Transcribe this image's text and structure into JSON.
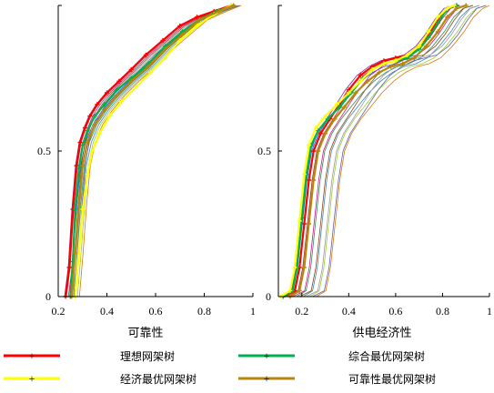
{
  "chart_data": [
    {
      "type": "line",
      "xlabel": "可靠性",
      "ylabel": "",
      "xlim": [
        0.2,
        1.0
      ],
      "ylim": [
        0,
        1.0
      ],
      "x_ticks": [
        "0.2",
        "0.4",
        "0.6",
        "0.8",
        "1"
      ],
      "y_ticks": [
        "0",
        "0.5"
      ],
      "grid": false,
      "series": [
        {
          "name": "理想网架树",
          "color": "#ff0000",
          "x": [
            0.23,
            0.245,
            0.26,
            0.275,
            0.29,
            0.31,
            0.33,
            0.36,
            0.4,
            0.45,
            0.5,
            0.56,
            0.63,
            0.7,
            0.77,
            0.84,
            0.91
          ],
          "y": [
            0.0,
            0.1,
            0.3,
            0.45,
            0.53,
            0.58,
            0.62,
            0.66,
            0.7,
            0.74,
            0.78,
            0.83,
            0.88,
            0.93,
            0.96,
            0.98,
            1.0
          ]
        },
        {
          "name": "综合最优网架树",
          "color": "#00b050",
          "x": [
            0.25,
            0.26,
            0.27,
            0.285,
            0.3,
            0.32,
            0.35,
            0.39,
            0.44,
            0.5,
            0.57,
            0.64,
            0.71,
            0.78,
            0.85,
            0.92
          ],
          "y": [
            0.0,
            0.12,
            0.3,
            0.44,
            0.52,
            0.57,
            0.62,
            0.66,
            0.71,
            0.75,
            0.8,
            0.86,
            0.91,
            0.95,
            0.98,
            1.0
          ]
        },
        {
          "name": "经济最优网架树",
          "color": "#ffff00",
          "x": [
            0.27,
            0.285,
            0.3,
            0.32,
            0.34,
            0.37,
            0.41,
            0.46,
            0.52,
            0.58,
            0.64,
            0.7,
            0.77,
            0.84,
            0.91
          ],
          "y": [
            0.0,
            0.15,
            0.3,
            0.42,
            0.5,
            0.56,
            0.62,
            0.67,
            0.72,
            0.77,
            0.82,
            0.88,
            0.93,
            0.97,
            1.0
          ]
        },
        {
          "name": "可靠性最优网架树",
          "color": "#b8860b",
          "x": [
            0.255,
            0.27,
            0.285,
            0.3,
            0.32,
            0.35,
            0.39,
            0.44,
            0.5,
            0.57,
            0.64,
            0.71,
            0.78,
            0.86,
            0.92
          ],
          "y": [
            0.0,
            0.15,
            0.32,
            0.45,
            0.53,
            0.59,
            0.64,
            0.69,
            0.74,
            0.79,
            0.85,
            0.9,
            0.95,
            0.98,
            1.0
          ]
        }
      ]
    },
    {
      "type": "line",
      "xlabel": "供电经济性",
      "ylabel": "",
      "xlim": [
        0.1,
        1.0
      ],
      "ylim": [
        0,
        1.0
      ],
      "x_ticks": [
        "0.2",
        "0.4",
        "0.6",
        "0.8",
        "1"
      ],
      "y_ticks": [
        "0",
        "0.5"
      ],
      "grid": false,
      "series": [
        {
          "name": "理想网架树",
          "color": "#ff0000",
          "x": [
            0.12,
            0.17,
            0.19,
            0.21,
            0.23,
            0.25,
            0.28,
            0.32,
            0.36,
            0.4,
            0.45,
            0.5,
            0.55,
            0.6,
            0.65,
            0.7,
            0.74,
            0.78,
            0.82,
            0.86
          ],
          "y": [
            0.0,
            0.02,
            0.1,
            0.25,
            0.4,
            0.5,
            0.56,
            0.61,
            0.66,
            0.71,
            0.76,
            0.79,
            0.81,
            0.82,
            0.83,
            0.86,
            0.9,
            0.95,
            0.99,
            1.0
          ]
        },
        {
          "name": "综合最优网架树",
          "color": "#00b050",
          "x": [
            0.12,
            0.16,
            0.18,
            0.2,
            0.22,
            0.24,
            0.27,
            0.31,
            0.36,
            0.41,
            0.46,
            0.5,
            0.55,
            0.6,
            0.65,
            0.7,
            0.74,
            0.78,
            0.82,
            0.86
          ],
          "y": [
            0.0,
            0.02,
            0.1,
            0.27,
            0.42,
            0.52,
            0.57,
            0.61,
            0.65,
            0.7,
            0.75,
            0.78,
            0.8,
            0.81,
            0.82,
            0.85,
            0.89,
            0.94,
            0.99,
            1.0
          ]
        },
        {
          "name": "经济最优网架树",
          "color": "#ffff00",
          "x": [
            0.11,
            0.15,
            0.17,
            0.19,
            0.21,
            0.23,
            0.26,
            0.3,
            0.35,
            0.4,
            0.45,
            0.5,
            0.55,
            0.6,
            0.65,
            0.7,
            0.74,
            0.78,
            0.82,
            0.85
          ],
          "y": [
            0.0,
            0.02,
            0.1,
            0.26,
            0.42,
            0.52,
            0.58,
            0.62,
            0.66,
            0.7,
            0.74,
            0.78,
            0.8,
            0.81,
            0.83,
            0.86,
            0.91,
            0.96,
            0.99,
            1.0
          ]
        },
        {
          "name": "可靠性最优网架树",
          "color": "#b8860b",
          "x": [
            0.15,
            0.19,
            0.21,
            0.23,
            0.25,
            0.27,
            0.3,
            0.34,
            0.38,
            0.43,
            0.48,
            0.53,
            0.58,
            0.63,
            0.68,
            0.73,
            0.78,
            0.82,
            0.86,
            0.9
          ],
          "y": [
            0.0,
            0.02,
            0.1,
            0.25,
            0.4,
            0.5,
            0.56,
            0.61,
            0.65,
            0.7,
            0.74,
            0.77,
            0.79,
            0.8,
            0.82,
            0.86,
            0.91,
            0.96,
            0.99,
            1.0
          ]
        }
      ]
    }
  ],
  "legend": {
    "placement": "bottom",
    "items": [
      {
        "label": "理想网架树",
        "color": "#ff0000"
      },
      {
        "label": "综合最优网架树",
        "color": "#00b050"
      },
      {
        "label": "经济最优网架树",
        "color": "#ffff00"
      },
      {
        "label": "可靠性最优网架树",
        "color": "#b8860b"
      }
    ]
  }
}
